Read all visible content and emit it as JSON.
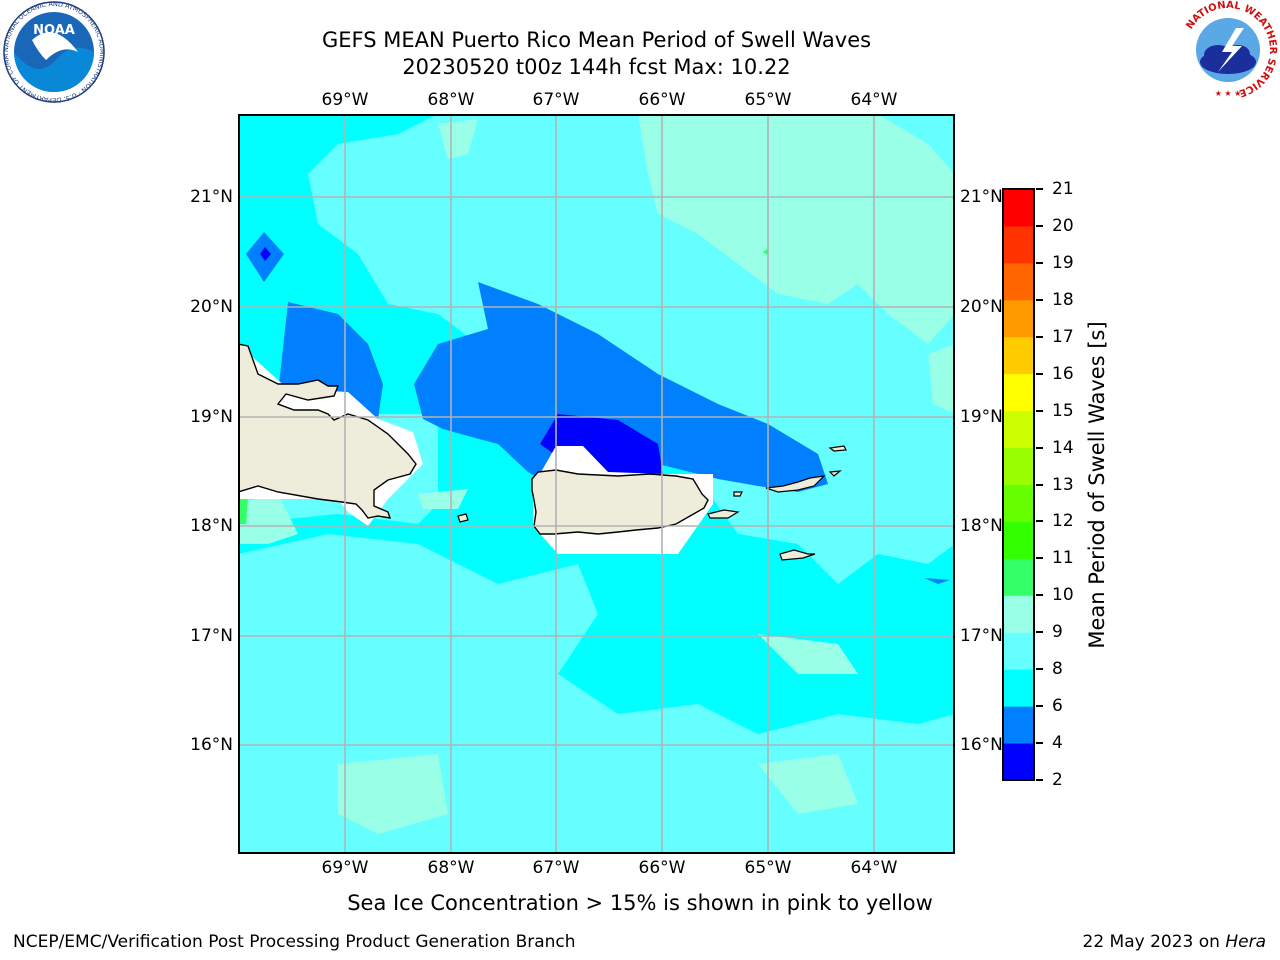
{
  "header": {
    "title_line1": "GEFS MEAN Puerto Rico Mean Period of Swell Waves",
    "title_line2": "20230520 t00z 144h fcst   Max: 10.22"
  },
  "logos": {
    "noaa_text": "NOAA",
    "noaa_ring": "NATIONAL OCEANIC AND ATMOSPHERIC ADMINISTRATION · U.S. DEPARTMENT OF COMMERCE",
    "nws_ring": "NATIONAL WEATHER SERVICE"
  },
  "map": {
    "lon_labels": [
      "69°W",
      "68°W",
      "67°W",
      "66°W",
      "65°W",
      "64°W"
    ],
    "lat_labels": [
      "21°N",
      "20°N",
      "19°N",
      "18°N",
      "17°N",
      "16°N"
    ],
    "colors": {
      "land": "#eeecdb",
      "ocean_6_8": "#00ffff",
      "ocean_8_9": "#66ffff",
      "ocean_9_10": "#99ffe6",
      "ocean_4_6": "#0080ff",
      "ocean_2_4": "#0000ff",
      "grid": "#b3b3b3"
    }
  },
  "colorbar": {
    "title": "Mean Period of Swell Waves [s]",
    "ticks": [
      "2",
      "4",
      "6",
      "8",
      "9",
      "10",
      "11",
      "12",
      "13",
      "14",
      "15",
      "16",
      "17",
      "18",
      "19",
      "20",
      "21"
    ],
    "bin_colors": [
      "#0000ff",
      "#0080ff",
      "#00ffff",
      "#66ffff",
      "#99ffe6",
      "#33ff66",
      "#33ff00",
      "#66ff00",
      "#99ff00",
      "#ccff00",
      "#ffff00",
      "#ffcc00",
      "#ff9900",
      "#ff6600",
      "#ff3300",
      "#ff0000"
    ]
  },
  "footer": {
    "note": "Sea Ice Concentration > 15% is shown in pink to yellow",
    "left": "NCEP/EMC/Verification Post Processing Product Generation Branch",
    "right_date": "22 May 2023 on",
    "right_host": "Hera"
  }
}
